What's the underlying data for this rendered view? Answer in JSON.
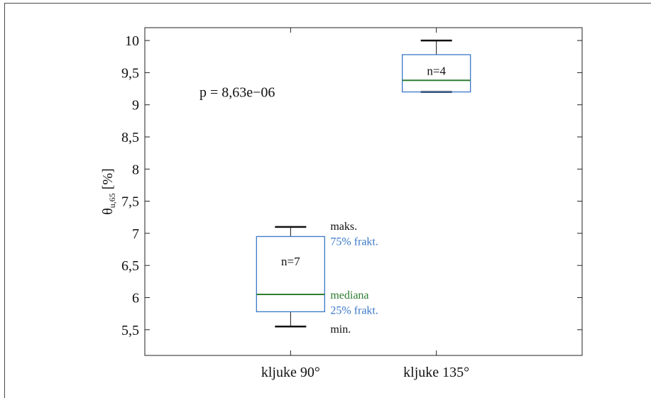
{
  "chart_data": {
    "type": "box",
    "ylabel": {
      "symbol": "θ",
      "subscript": "u,65",
      "unit": "[%]"
    },
    "ylim": [
      5.1,
      10.2
    ],
    "yticks": [
      {
        "value": 5.5,
        "label": "5,5"
      },
      {
        "value": 6,
        "label": "6"
      },
      {
        "value": 6.5,
        "label": "6,5"
      },
      {
        "value": 7,
        "label": "7"
      },
      {
        "value": 7.5,
        "label": "7,5"
      },
      {
        "value": 8,
        "label": "8"
      },
      {
        "value": 8.5,
        "label": "8,5"
      },
      {
        "value": 9,
        "label": "9"
      },
      {
        "value": 9.5,
        "label": "9,5"
      },
      {
        "value": 10,
        "label": "10"
      }
    ],
    "grid": false,
    "categories": [
      "kljuke 90°",
      "kljuke 135°"
    ],
    "boxes": [
      {
        "category": "kljuke 90°",
        "min": 5.55,
        "q1": 5.78,
        "median": 6.05,
        "q3": 6.95,
        "max": 7.1,
        "n_label": "n=7"
      },
      {
        "category": "kljuke 135°",
        "min": 9.2,
        "q1": 9.2,
        "median": 9.38,
        "q3": 9.78,
        "max": 10.0,
        "n_label": "n=4"
      }
    ],
    "annotations": {
      "p_value": "p = 8,63e−06",
      "max_label": "maks.",
      "q3_label": "75% frakt.",
      "median_label": "mediana",
      "q1_label": "25% frakt.",
      "min_label": "min."
    },
    "colors": {
      "box": "#3a78c8",
      "median": "#2e7d32",
      "whisker": "#111111",
      "axis": "#222222",
      "text": "#111111"
    }
  }
}
